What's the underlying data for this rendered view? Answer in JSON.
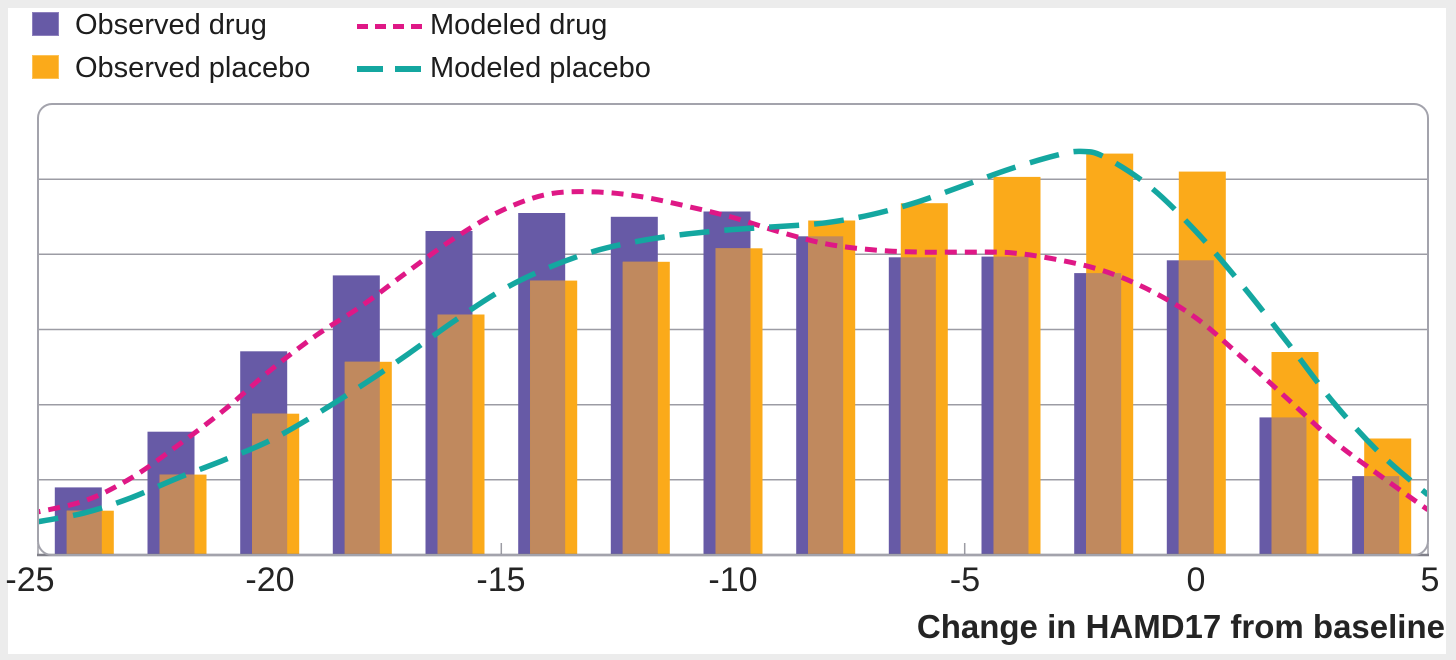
{
  "legend": {
    "items": [
      {
        "label": "Observed drug",
        "marker": "square",
        "color": "#675aa6"
      },
      {
        "label": "Observed placebo",
        "marker": "square",
        "color": "#fbaa1a"
      },
      {
        "label": "Modeled drug",
        "marker": "dotted-line",
        "color": "#df1886"
      },
      {
        "label": "Modeled placebo",
        "marker": "dashed-line",
        "color": "#14a7a0"
      }
    ]
  },
  "chart_data": {
    "type": "bar",
    "title": "",
    "xlabel": "Change in HAMD17 from baseline",
    "ylabel": "",
    "xlim": [
      -25,
      5
    ],
    "ylim": [
      0,
      6
    ],
    "grid": true,
    "inner_gridlines": 5,
    "legend_position": "top-left",
    "y_axis_note": "no y tick labels shown; bar/curve values expressed in gridline units (1 = one horizontal band)",
    "x_ticks": [
      -25,
      -20,
      -15,
      -10,
      -5,
      0,
      5
    ],
    "x_tick_labels": [
      "-25",
      "-20",
      "-15",
      "-10",
      "-5",
      "0",
      "5"
    ],
    "bin_width": 2,
    "bin_centers": [
      -24,
      -22,
      -20,
      -18,
      -16,
      -14,
      -12,
      -10,
      -8,
      -6,
      -4,
      -2,
      0,
      2,
      4
    ],
    "overlap_color": "#c0895e",
    "series": [
      {
        "name": "Observed drug",
        "kind": "bar",
        "color": "#675aa6",
        "values": [
          0.9,
          1.64,
          2.71,
          3.72,
          4.31,
          4.55,
          4.5,
          4.57,
          4.24,
          3.96,
          3.97,
          3.75,
          3.92,
          1.83,
          1.05
        ]
      },
      {
        "name": "Observed placebo",
        "kind": "bar",
        "color": "#fbaa1a",
        "values": [
          0.59,
          1.07,
          1.88,
          2.57,
          3.2,
          3.65,
          3.9,
          4.08,
          4.45,
          4.68,
          5.03,
          5.34,
          5.1,
          2.7,
          1.55
        ]
      },
      {
        "name": "Modeled drug",
        "kind": "line",
        "dash": "dotted",
        "color": "#df1886",
        "points": [
          [
            -25.2,
            0.55
          ],
          [
            -24,
            0.72
          ],
          [
            -23,
            1.02
          ],
          [
            -22,
            1.45
          ],
          [
            -21,
            1.92
          ],
          [
            -20,
            2.45
          ],
          [
            -19,
            2.92
          ],
          [
            -18,
            3.32
          ],
          [
            -17,
            3.78
          ],
          [
            -16,
            4.22
          ],
          [
            -15,
            4.58
          ],
          [
            -14,
            4.8
          ],
          [
            -13,
            4.83
          ],
          [
            -12,
            4.77
          ],
          [
            -11,
            4.64
          ],
          [
            -10,
            4.49
          ],
          [
            -9,
            4.3
          ],
          [
            -8,
            4.14
          ],
          [
            -7,
            4.06
          ],
          [
            -6,
            4.03
          ],
          [
            -5,
            4.03
          ],
          [
            -4,
            4.02
          ],
          [
            -3,
            3.93
          ],
          [
            -2,
            3.78
          ],
          [
            -1,
            3.52
          ],
          [
            0,
            3.15
          ],
          [
            1,
            2.62
          ],
          [
            2,
            2.06
          ],
          [
            3,
            1.5
          ],
          [
            4,
            1.04
          ],
          [
            5,
            0.6
          ]
        ]
      },
      {
        "name": "Modeled placebo",
        "kind": "line",
        "dash": "dashed",
        "color": "#14a7a0",
        "points": [
          [
            -25.2,
            0.42
          ],
          [
            -24,
            0.56
          ],
          [
            -23,
            0.76
          ],
          [
            -22,
            1.02
          ],
          [
            -21,
            1.26
          ],
          [
            -20,
            1.52
          ],
          [
            -19,
            1.87
          ],
          [
            -18,
            2.26
          ],
          [
            -17,
            2.68
          ],
          [
            -16,
            3.12
          ],
          [
            -15,
            3.52
          ],
          [
            -14,
            3.82
          ],
          [
            -13,
            4.04
          ],
          [
            -12,
            4.18
          ],
          [
            -11,
            4.27
          ],
          [
            -10,
            4.33
          ],
          [
            -9,
            4.37
          ],
          [
            -8,
            4.42
          ],
          [
            -7,
            4.53
          ],
          [
            -6,
            4.7
          ],
          [
            -5,
            4.92
          ],
          [
            -4,
            5.14
          ],
          [
            -3,
            5.32
          ],
          [
            -2.5,
            5.37
          ],
          [
            -2,
            5.3
          ],
          [
            -1,
            4.9
          ],
          [
            0,
            4.3
          ],
          [
            1,
            3.58
          ],
          [
            2,
            2.8
          ],
          [
            3,
            2.0
          ],
          [
            4,
            1.33
          ],
          [
            5,
            0.8
          ]
        ]
      }
    ],
    "colors": {
      "observed_drug": "#675aa6",
      "observed_placebo": "#fbaa1a",
      "bar_overlap": "#c0895e",
      "modeled_drug": "#df1886",
      "modeled_placebo": "#14a7a0",
      "gridline": "#9c9ca4",
      "plot_border": "#a3a3ac",
      "axis_line": "#7f7f88",
      "text": "#242424",
      "page_background": "#ececec"
    }
  }
}
